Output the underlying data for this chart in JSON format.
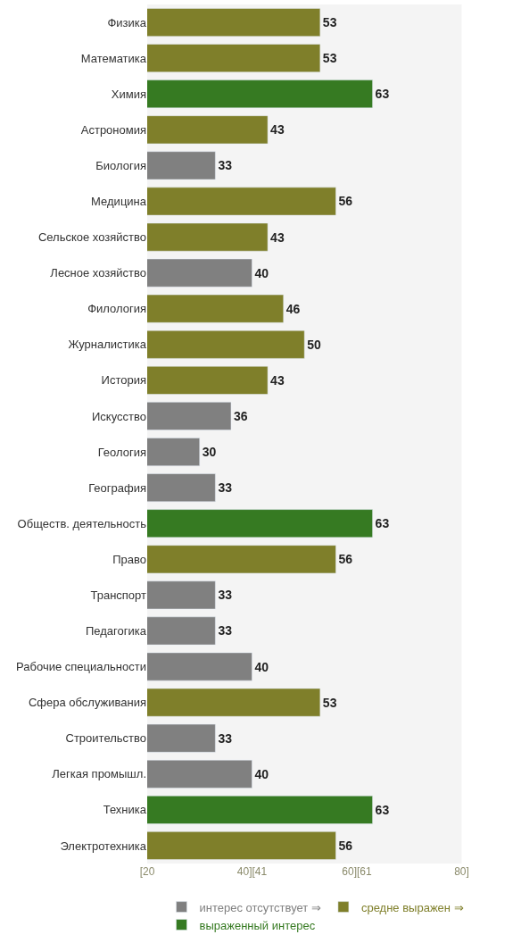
{
  "chart_data": {
    "type": "bar",
    "orientation": "horizontal",
    "categories": [
      "Физика",
      "Математика",
      "Химия",
      "Астрономия",
      "Биология",
      "Медицина",
      "Сельское хозяйство",
      "Лесное хозяйство",
      "Филология",
      "Журналистика",
      "История",
      "Искусство",
      "Геология",
      "География",
      "Обществ. деятельность",
      "Право",
      "Транспорт",
      "Педагогика",
      "Рабочие специальности",
      "Сфера обслуживания",
      "Строительство",
      "Легкая промышл.",
      "Техника",
      "Электротехника"
    ],
    "series": [
      {
        "name": "интерес отсутствует ⇒",
        "color": "#808080",
        "values": [
          null,
          null,
          null,
          null,
          33,
          null,
          null,
          40,
          null,
          null,
          null,
          36,
          30,
          33,
          null,
          null,
          33,
          33,
          40,
          null,
          33,
          40,
          null,
          null
        ]
      },
      {
        "name": "средне выражен ⇒",
        "color": "#7f7f2a",
        "values": [
          53,
          53,
          null,
          43,
          null,
          56,
          43,
          null,
          46,
          50,
          43,
          null,
          null,
          null,
          null,
          56,
          null,
          null,
          null,
          53,
          null,
          null,
          null,
          56
        ]
      },
      {
        "name": "выраженный интерес",
        "color": "#367a22",
        "values": [
          null,
          null,
          63,
          null,
          null,
          null,
          null,
          null,
          null,
          null,
          null,
          null,
          null,
          null,
          63,
          null,
          null,
          null,
          null,
          null,
          null,
          null,
          63,
          null
        ]
      }
    ],
    "xlim": [
      20,
      80
    ],
    "xticks": [
      {
        "value": 20,
        "label": "[20"
      },
      {
        "value": 40,
        "label": "40][41"
      },
      {
        "value": 60,
        "label": "60][61"
      },
      {
        "value": 80,
        "label": "80]"
      }
    ],
    "data_labels": true,
    "legend": "bottom",
    "grid": false
  }
}
